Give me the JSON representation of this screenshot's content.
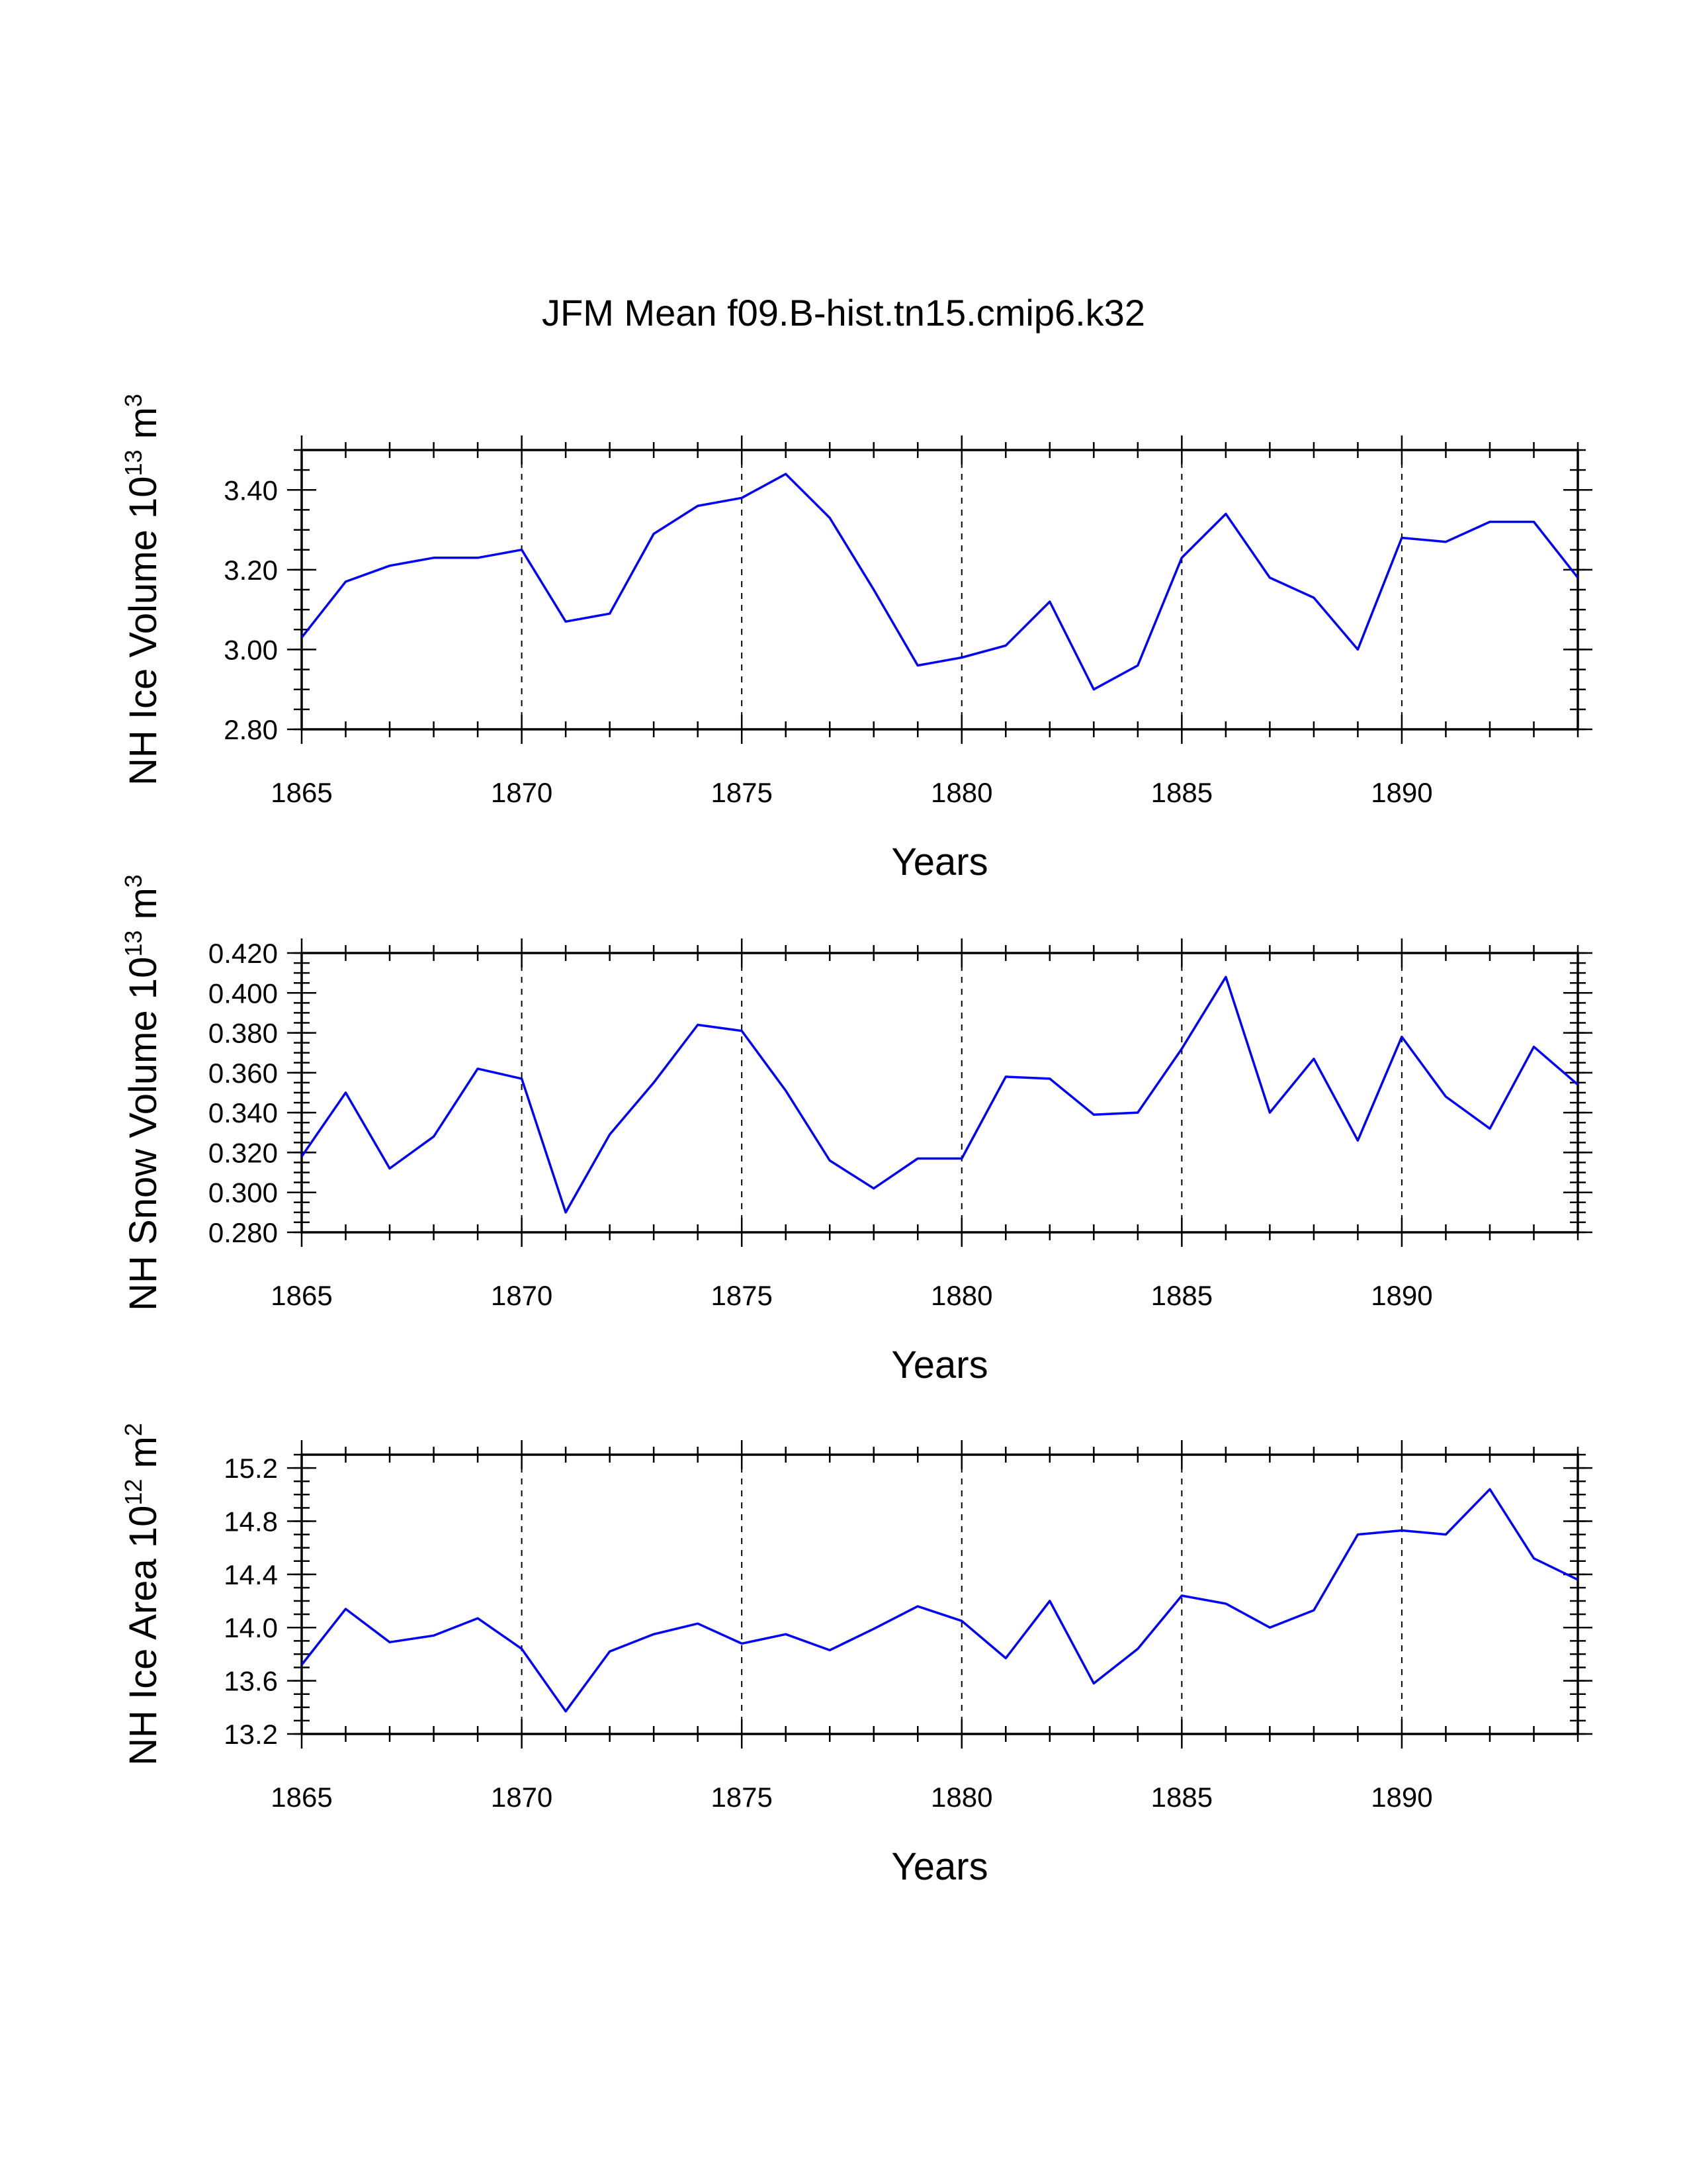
{
  "title": "JFM Mean f09.B-hist.tn15.cmip6.k32",
  "chart_data": [
    {
      "type": "line",
      "ylabel_main": "NH Ice Volume 10",
      "ylabel_exp": "13",
      "ylabel_unit": " m",
      "ylabel_unit_exp": "3",
      "xlabel": "Years",
      "xlim": [
        1865,
        1894
      ],
      "ylim": [
        2.8,
        3.5
      ],
      "yticks": [
        "2.80",
        "3.00",
        "3.20",
        "3.40"
      ],
      "ytick_values": [
        2.8,
        3.0,
        3.2,
        3.4
      ],
      "ytick_minor_step": 0.05,
      "xticks": [
        "1865",
        "1870",
        "1875",
        "1880",
        "1885",
        "1890"
      ],
      "xtick_values": [
        1865,
        1870,
        1875,
        1880,
        1885,
        1890
      ],
      "grid_x": [
        1870,
        1875,
        1880,
        1885,
        1890
      ],
      "color": "#0000ff",
      "x": [
        1865,
        1866,
        1867,
        1868,
        1869,
        1870,
        1871,
        1872,
        1873,
        1874,
        1875,
        1876,
        1877,
        1878,
        1879,
        1880,
        1881,
        1882,
        1883,
        1884,
        1885,
        1886,
        1887,
        1888,
        1889,
        1890,
        1891,
        1892,
        1893,
        1894
      ],
      "values": [
        3.03,
        3.17,
        3.21,
        3.23,
        3.23,
        3.25,
        3.07,
        3.09,
        3.29,
        3.36,
        3.38,
        3.44,
        3.33,
        3.15,
        2.96,
        2.98,
        3.01,
        3.12,
        2.9,
        2.96,
        3.23,
        3.34,
        3.18,
        3.13,
        3.0,
        3.28,
        3.27,
        3.32,
        3.32,
        3.18
      ]
    },
    {
      "type": "line",
      "ylabel_main": "NH Snow Volume 10",
      "ylabel_exp": "13",
      "ylabel_unit": " m",
      "ylabel_unit_exp": "3",
      "xlabel": "Years",
      "xlim": [
        1865,
        1894
      ],
      "ylim": [
        0.28,
        0.42
      ],
      "yticks": [
        "0.280",
        "0.300",
        "0.320",
        "0.340",
        "0.360",
        "0.380",
        "0.400",
        "0.420"
      ],
      "ytick_values": [
        0.28,
        0.3,
        0.32,
        0.34,
        0.36,
        0.38,
        0.4,
        0.42
      ],
      "ytick_minor_step": 0.005,
      "xticks": [
        "1865",
        "1870",
        "1875",
        "1880",
        "1885",
        "1890"
      ],
      "xtick_values": [
        1865,
        1870,
        1875,
        1880,
        1885,
        1890
      ],
      "grid_x": [
        1870,
        1875,
        1880,
        1885,
        1890
      ],
      "color": "#0000ff",
      "x": [
        1865,
        1866,
        1867,
        1868,
        1869,
        1870,
        1871,
        1872,
        1873,
        1874,
        1875,
        1876,
        1877,
        1878,
        1879,
        1880,
        1881,
        1882,
        1883,
        1884,
        1885,
        1886,
        1887,
        1888,
        1889,
        1890,
        1891,
        1892,
        1893,
        1894
      ],
      "values": [
        0.318,
        0.35,
        0.312,
        0.328,
        0.362,
        0.357,
        0.29,
        0.329,
        0.355,
        0.384,
        0.381,
        0.351,
        0.316,
        0.302,
        0.317,
        0.317,
        0.358,
        0.357,
        0.339,
        0.34,
        0.372,
        0.408,
        0.34,
        0.367,
        0.326,
        0.378,
        0.348,
        0.332,
        0.373,
        0.354
      ]
    },
    {
      "type": "line",
      "ylabel_main": "NH Ice Area 10",
      "ylabel_exp": "12",
      "ylabel_unit": " m",
      "ylabel_unit_exp": "2",
      "xlabel": "Years",
      "xlim": [
        1865,
        1894
      ],
      "ylim": [
        13.2,
        15.3
      ],
      "yticks": [
        "13.2",
        "13.6",
        "14.0",
        "14.4",
        "14.8",
        "15.2"
      ],
      "ytick_values": [
        13.2,
        13.6,
        14.0,
        14.4,
        14.8,
        15.2
      ],
      "ytick_minor_step": 0.1,
      "xticks": [
        "1865",
        "1870",
        "1875",
        "1880",
        "1885",
        "1890"
      ],
      "xtick_values": [
        1865,
        1870,
        1875,
        1880,
        1885,
        1890
      ],
      "grid_x": [
        1870,
        1875,
        1880,
        1885,
        1890
      ],
      "color": "#0000ff",
      "x": [
        1865,
        1866,
        1867,
        1868,
        1869,
        1870,
        1871,
        1872,
        1873,
        1874,
        1875,
        1876,
        1877,
        1878,
        1879,
        1880,
        1881,
        1882,
        1883,
        1884,
        1885,
        1886,
        1887,
        1888,
        1889,
        1890,
        1891,
        1892,
        1893,
        1894
      ],
      "values": [
        13.72,
        14.14,
        13.89,
        13.94,
        14.07,
        13.84,
        13.37,
        13.82,
        13.95,
        14.03,
        13.88,
        13.95,
        13.83,
        13.99,
        14.16,
        14.05,
        13.77,
        14.2,
        13.58,
        13.84,
        14.24,
        14.18,
        14.0,
        14.13,
        14.7,
        14.73,
        14.7,
        15.04,
        14.52,
        14.36
      ]
    }
  ]
}
